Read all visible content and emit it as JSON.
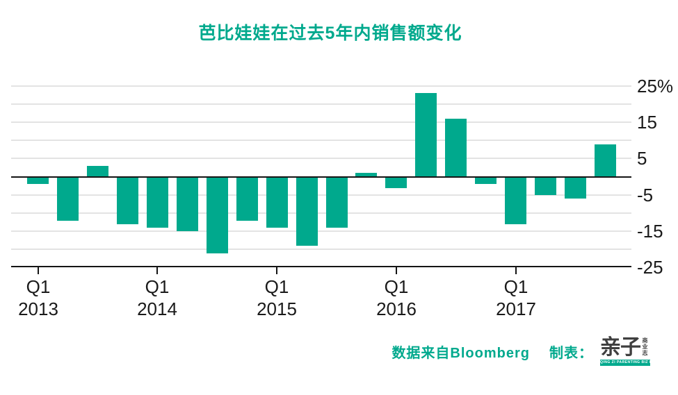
{
  "title": "芭比娃娃在过去5年内销售额变化",
  "colors": {
    "accent": "#00A98D",
    "bar": "#00A98D",
    "grid": "#E3E3E3",
    "axis": "#141414",
    "text": "#1A1A1A",
    "logo_text": "#3F3F3F"
  },
  "chart_data": {
    "type": "bar",
    "title": "芭比娃娃在过去5年内销售额变化",
    "x": [
      "2013Q1",
      "2013Q2",
      "2013Q3",
      "2013Q4",
      "2014Q1",
      "2014Q2",
      "2014Q3",
      "2014Q4",
      "2015Q1",
      "2015Q2",
      "2015Q3",
      "2015Q4",
      "2016Q1",
      "2016Q2",
      "2016Q3",
      "2016Q4",
      "2017Q1",
      "2017Q2",
      "2017Q3",
      "2017Q4"
    ],
    "values": [
      -2,
      -12,
      3,
      -13,
      -14,
      -15,
      -21,
      -12,
      -14,
      -19,
      -14,
      1,
      -3,
      23,
      16,
      -2,
      -13,
      -5,
      -6,
      9
    ],
    "unit": "%",
    "ylim": [
      -25,
      25
    ],
    "yticks": [
      25,
      15,
      5,
      -5,
      -15,
      -25
    ],
    "ytick_labels": [
      "25%",
      "15",
      "5",
      "-5",
      "-15",
      "-25"
    ],
    "gridline_values": [
      25,
      20,
      15,
      10,
      5,
      -5,
      -10,
      -15,
      -20
    ],
    "x_tick_groups": [
      {
        "q": "Q1",
        "year": "2013"
      },
      {
        "q": "Q1",
        "year": "2014"
      },
      {
        "q": "Q1",
        "year": "2015"
      },
      {
        "q": "Q1",
        "year": "2016"
      },
      {
        "q": "Q1",
        "year": "2017"
      }
    ],
    "legend": false,
    "grid": true,
    "ytick_side": "right"
  },
  "footer": {
    "source": "数据来自Bloomberg",
    "credit": "制表：",
    "logo_main": "亲子",
    "logo_sub": "商业志",
    "logo_banner": "QING ZI PARENTING BIZ INSIDER"
  }
}
